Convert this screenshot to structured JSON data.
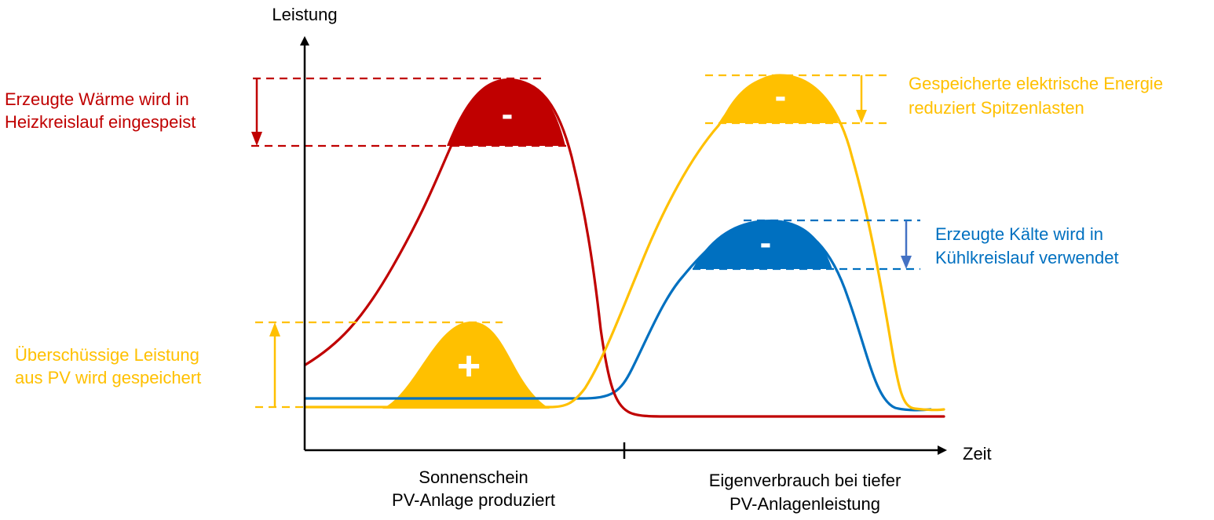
{
  "colors": {
    "heat": "#c00000",
    "storage": "#ffc000",
    "cooling": "#0070c0",
    "arrow_blue": "#4472c4",
    "axis": "#000000"
  },
  "axes": {
    "y_label": "Leistung",
    "x_label": "Zeit"
  },
  "periods": {
    "left_line1": "Sonnenschein",
    "left_line2": "PV-Anlage produziert",
    "right_line1": "Eigenverbrauch bei tiefer",
    "right_line2": "PV-Anlagenleistung"
  },
  "annotations": {
    "heat_line1": "Erzeugte Wärme wird in",
    "heat_line2": "Heizkreislauf eingespeist",
    "surplus_line1": "Überschüssige Leistung",
    "surplus_line2": "aus PV wird gespeichert",
    "stored_line1": "Gespeicherte elektrische Energie",
    "stored_line2": "reduziert Spitzenlasten",
    "cold_line1": "Erzeugte Kälte wird in",
    "cold_line2": "Kühlkreislauf verwendet"
  },
  "signs": {
    "heat": "-",
    "surplus": "+",
    "stored": "-",
    "cold": "-"
  },
  "series": [
    {
      "name": "heat",
      "color_key": "heat"
    },
    {
      "name": "pv-storage",
      "color_key": "storage"
    },
    {
      "name": "cooling",
      "color_key": "cooling"
    }
  ]
}
